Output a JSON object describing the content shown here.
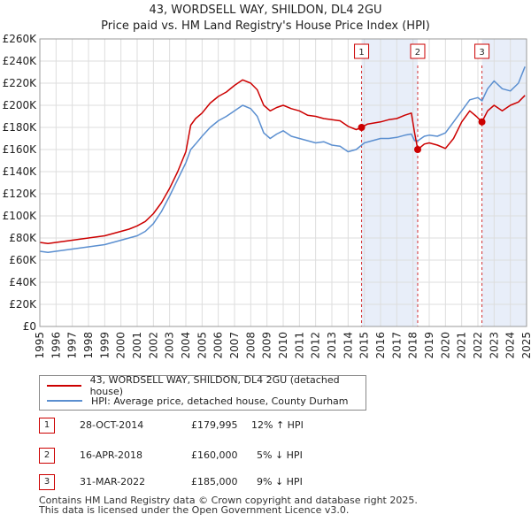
{
  "title_line1": "43, WORDSELL WAY, SHILDON, DL4 2GU",
  "title_line2": "Price paid vs. HM Land Registry's House Price Index (HPI)",
  "colors": {
    "property": "#cc0000",
    "hpi": "#5b8fd0",
    "shade": "#e8eef9",
    "grid": "#dddddd"
  },
  "chart_data": {
    "type": "line",
    "xlim": [
      1995,
      2025
    ],
    "ylim": [
      0,
      260000
    ],
    "y_ticks": [
      0,
      20000,
      40000,
      60000,
      80000,
      100000,
      120000,
      140000,
      160000,
      180000,
      200000,
      220000,
      240000,
      260000
    ],
    "y_tick_labels": [
      "£0",
      "£20K",
      "£40K",
      "£60K",
      "£80K",
      "£100K",
      "£120K",
      "£140K",
      "£160K",
      "£180K",
      "£200K",
      "£220K",
      "£240K",
      "£260K"
    ],
    "x_tick_labels": [
      "1995",
      "1996",
      "1997",
      "1998",
      "1999",
      "2000",
      "2001",
      "2002",
      "2003",
      "2004",
      "2005",
      "2006",
      "2007",
      "2008",
      "2009",
      "2010",
      "2011",
      "2012",
      "2013",
      "2014",
      "2015",
      "2016",
      "2017",
      "2018",
      "2019",
      "2020",
      "2021",
      "2022",
      "2023",
      "2024",
      "2025"
    ],
    "grid": true,
    "series": [
      {
        "name": "43, WORDSELL WAY, SHILDON, DL4 2GU (detached house)",
        "points": [
          [
            1995.0,
            76000
          ],
          [
            1995.5,
            75000
          ],
          [
            1996.0,
            76000
          ],
          [
            1996.5,
            77000
          ],
          [
            1997.0,
            78000
          ],
          [
            1997.5,
            79000
          ],
          [
            1998.0,
            80000
          ],
          [
            1998.5,
            81000
          ],
          [
            1999.0,
            82000
          ],
          [
            1999.5,
            84000
          ],
          [
            2000.0,
            86000
          ],
          [
            2000.5,
            88000
          ],
          [
            2001.0,
            91000
          ],
          [
            2001.5,
            95000
          ],
          [
            2002.0,
            102000
          ],
          [
            2002.5,
            112000
          ],
          [
            2003.0,
            125000
          ],
          [
            2003.5,
            140000
          ],
          [
            2004.0,
            158000
          ],
          [
            2004.3,
            182000
          ],
          [
            2004.6,
            188000
          ],
          [
            2005.0,
            193000
          ],
          [
            2005.5,
            202000
          ],
          [
            2006.0,
            208000
          ],
          [
            2006.5,
            212000
          ],
          [
            2007.0,
            218000
          ],
          [
            2007.5,
            223000
          ],
          [
            2008.0,
            220000
          ],
          [
            2008.4,
            214000
          ],
          [
            2008.8,
            200000
          ],
          [
            2009.2,
            195000
          ],
          [
            2009.6,
            198000
          ],
          [
            2010.0,
            200000
          ],
          [
            2010.5,
            197000
          ],
          [
            2011.0,
            195000
          ],
          [
            2011.5,
            191000
          ],
          [
            2012.0,
            190000
          ],
          [
            2012.5,
            188000
          ],
          [
            2013.0,
            187000
          ],
          [
            2013.5,
            186000
          ],
          [
            2014.0,
            181000
          ],
          [
            2014.5,
            178000
          ],
          [
            2014.83,
            179995
          ],
          [
            2015.2,
            183000
          ],
          [
            2015.6,
            184000
          ],
          [
            2016.0,
            185000
          ],
          [
            2016.5,
            187000
          ],
          [
            2017.0,
            188000
          ],
          [
            2017.5,
            191000
          ],
          [
            2017.9,
            193000
          ],
          [
            2018.1,
            175000
          ],
          [
            2018.29,
            160000
          ],
          [
            2018.7,
            165000
          ],
          [
            2019.0,
            166000
          ],
          [
            2019.5,
            164000
          ],
          [
            2020.0,
            161000
          ],
          [
            2020.5,
            170000
          ],
          [
            2021.0,
            185000
          ],
          [
            2021.5,
            195000
          ],
          [
            2021.9,
            190000
          ],
          [
            2022.25,
            185000
          ],
          [
            2022.6,
            195000
          ],
          [
            2023.0,
            200000
          ],
          [
            2023.5,
            195000
          ],
          [
            2024.0,
            200000
          ],
          [
            2024.5,
            203000
          ],
          [
            2024.9,
            209000
          ]
        ]
      },
      {
        "name": "HPI: Average price, detached house, County Durham",
        "points": [
          [
            1995.0,
            68000
          ],
          [
            1995.5,
            67000
          ],
          [
            1996.0,
            68000
          ],
          [
            1996.5,
            69000
          ],
          [
            1997.0,
            70000
          ],
          [
            1997.5,
            71000
          ],
          [
            1998.0,
            72000
          ],
          [
            1998.5,
            73000
          ],
          [
            1999.0,
            74000
          ],
          [
            1999.5,
            76000
          ],
          [
            2000.0,
            78000
          ],
          [
            2000.5,
            80000
          ],
          [
            2001.0,
            82000
          ],
          [
            2001.5,
            86000
          ],
          [
            2002.0,
            93000
          ],
          [
            2002.5,
            104000
          ],
          [
            2003.0,
            118000
          ],
          [
            2003.5,
            133000
          ],
          [
            2004.0,
            148000
          ],
          [
            2004.3,
            160000
          ],
          [
            2004.6,
            165000
          ],
          [
            2005.0,
            172000
          ],
          [
            2005.5,
            180000
          ],
          [
            2006.0,
            186000
          ],
          [
            2006.5,
            190000
          ],
          [
            2007.0,
            195000
          ],
          [
            2007.5,
            200000
          ],
          [
            2008.0,
            197000
          ],
          [
            2008.4,
            190000
          ],
          [
            2008.8,
            175000
          ],
          [
            2009.2,
            170000
          ],
          [
            2009.6,
            174000
          ],
          [
            2010.0,
            177000
          ],
          [
            2010.5,
            172000
          ],
          [
            2011.0,
            170000
          ],
          [
            2011.5,
            168000
          ],
          [
            2012.0,
            166000
          ],
          [
            2012.5,
            167000
          ],
          [
            2013.0,
            164000
          ],
          [
            2013.5,
            163000
          ],
          [
            2014.0,
            158000
          ],
          [
            2014.5,
            160000
          ],
          [
            2015.0,
            166000
          ],
          [
            2015.5,
            168000
          ],
          [
            2016.0,
            170000
          ],
          [
            2016.5,
            170000
          ],
          [
            2017.0,
            171000
          ],
          [
            2017.5,
            173000
          ],
          [
            2017.9,
            174000
          ],
          [
            2018.1,
            168000
          ],
          [
            2018.3,
            168000
          ],
          [
            2018.7,
            172000
          ],
          [
            2019.0,
            173000
          ],
          [
            2019.5,
            172000
          ],
          [
            2020.0,
            175000
          ],
          [
            2020.5,
            185000
          ],
          [
            2021.0,
            195000
          ],
          [
            2021.5,
            205000
          ],
          [
            2022.0,
            207000
          ],
          [
            2022.25,
            204000
          ],
          [
            2022.6,
            215000
          ],
          [
            2023.0,
            222000
          ],
          [
            2023.5,
            215000
          ],
          [
            2024.0,
            213000
          ],
          [
            2024.5,
            220000
          ],
          [
            2024.9,
            235000
          ]
        ]
      }
    ],
    "shaded_ranges": [
      [
        2014.83,
        2018.29
      ],
      [
        2022.25,
        2025.0
      ]
    ],
    "sale_markers": [
      {
        "label": "1",
        "year": 2014.83,
        "price": 179995
      },
      {
        "label": "2",
        "year": 2018.29,
        "price": 160000
      },
      {
        "label": "3",
        "year": 2022.25,
        "price": 185000
      }
    ]
  },
  "legend": {
    "property_label": "43, WORDSELL WAY, SHILDON, DL4 2GU (detached house)",
    "hpi_label": "HPI: Average price, detached house, County Durham"
  },
  "sales": [
    {
      "num": "1",
      "date": "28-OCT-2014",
      "price": "£179,995",
      "hpi": "12% ↑ HPI"
    },
    {
      "num": "2",
      "date": "16-APR-2018",
      "price": "£160,000",
      "hpi": "5% ↓ HPI"
    },
    {
      "num": "3",
      "date": "31-MAR-2022",
      "price": "£185,000",
      "hpi": "9% ↓ HPI"
    }
  ],
  "footer_line1": "Contains HM Land Registry data © Crown copyright and database right 2025.",
  "footer_line2": "This data is licensed under the Open Government Licence v3.0."
}
